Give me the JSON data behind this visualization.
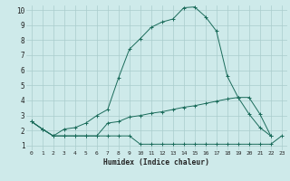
{
  "xlabel": "Humidex (Indice chaleur)",
  "bg_color": "#ceeaea",
  "grid_color": "#aacccc",
  "line_color": "#1a6b5a",
  "xlim": [
    -0.5,
    23.5
  ],
  "ylim": [
    0.7,
    10.3
  ],
  "xticks": [
    0,
    1,
    2,
    3,
    4,
    5,
    6,
    7,
    8,
    9,
    10,
    11,
    12,
    13,
    14,
    15,
    16,
    17,
    18,
    19,
    20,
    21,
    22,
    23
  ],
  "yticks": [
    1,
    2,
    3,
    4,
    5,
    6,
    7,
    8,
    9,
    10
  ],
  "curve1_x": [
    0,
    1,
    2,
    3,
    4,
    5,
    6,
    7,
    8,
    9,
    10,
    11,
    12,
    13,
    14,
    15,
    16,
    17,
    18,
    19,
    20,
    21,
    22
  ],
  "curve1_y": [
    2.6,
    2.1,
    1.65,
    2.1,
    2.2,
    2.5,
    3.0,
    3.4,
    5.5,
    7.4,
    8.1,
    8.85,
    9.2,
    9.4,
    10.15,
    10.2,
    9.55,
    8.6,
    5.6,
    4.2,
    3.1,
    2.2,
    1.65
  ],
  "curve2_x": [
    0,
    1,
    2,
    3,
    4,
    5,
    6,
    7,
    8,
    9,
    10,
    11,
    12,
    13,
    14,
    15,
    16,
    17,
    18,
    19,
    20,
    21,
    22
  ],
  "curve2_y": [
    2.6,
    2.1,
    1.65,
    1.65,
    1.65,
    1.65,
    1.65,
    2.5,
    2.6,
    2.9,
    3.0,
    3.15,
    3.25,
    3.4,
    3.55,
    3.65,
    3.8,
    3.95,
    4.1,
    4.2,
    4.2,
    3.1,
    1.65
  ],
  "curve3_x": [
    0,
    1,
    2,
    3,
    4,
    5,
    6,
    7,
    8,
    9,
    10,
    11,
    12,
    13,
    14,
    15,
    16,
    17,
    18,
    19,
    20,
    21,
    22,
    23
  ],
  "curve3_y": [
    2.6,
    2.1,
    1.65,
    1.65,
    1.65,
    1.65,
    1.65,
    1.65,
    1.65,
    1.65,
    1.1,
    1.1,
    1.1,
    1.1,
    1.1,
    1.1,
    1.1,
    1.1,
    1.1,
    1.1,
    1.1,
    1.1,
    1.1,
    1.65
  ]
}
